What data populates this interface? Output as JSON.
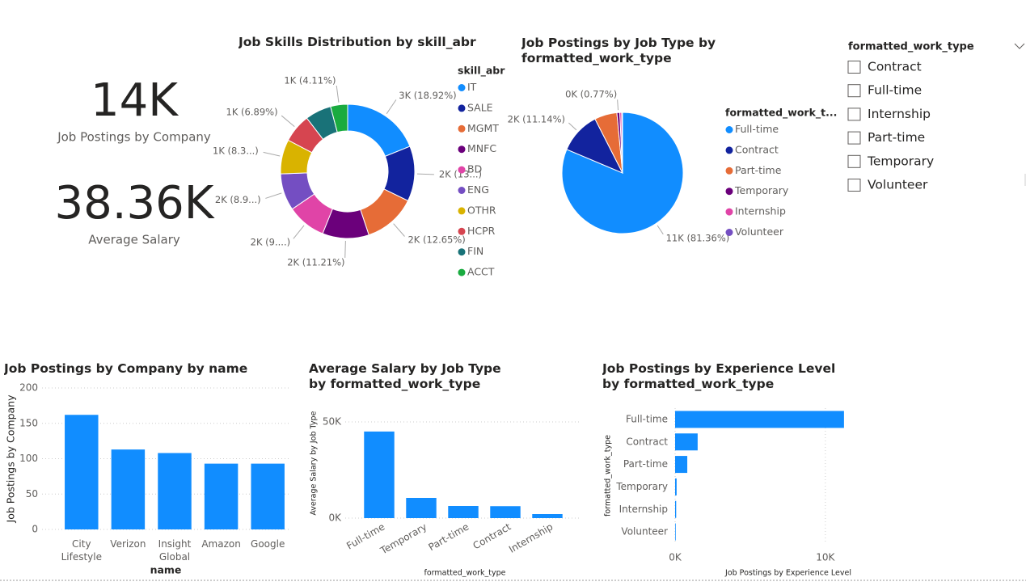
{
  "cards": [
    {
      "value": "14K",
      "label": "Job Postings by Company"
    },
    {
      "value": "38.36K",
      "label": "Average Salary"
    }
  ],
  "slicer": {
    "title": "formatted_work_type",
    "items": [
      "Contract",
      "Full-time",
      "Internship",
      "Part-time",
      "Temporary",
      "Volunteer"
    ]
  },
  "chart_data": [
    {
      "type": "donut",
      "title": "Job Skills Distribution by skill_abr",
      "legend_title": "skill_abr",
      "categories": [
        "IT",
        "SALE",
        "MGMT",
        "MNFC",
        "BD",
        "ENG",
        "OTHR",
        "HCPR",
        "FIN",
        "ACCT"
      ],
      "values": [
        18.92,
        13.3,
        12.65,
        11.21,
        9.4,
        8.9,
        8.3,
        6.89,
        6.3,
        4.11
      ],
      "value_labels": [
        "3K (18.92%)",
        "2K (13...)",
        "2K (12.65%)",
        "2K (11.21%)",
        "2K (9....)",
        "2K (8.9...)",
        "1K (8.3...)",
        "1K (6.89%)",
        null,
        "1K (4.11%)"
      ],
      "colors": [
        "#118DFF",
        "#12239E",
        "#E66C37",
        "#6B007B",
        "#E044A7",
        "#744EC2",
        "#D9B300",
        "#D64550",
        "#197278",
        "#1AAB40"
      ]
    },
    {
      "type": "pie",
      "title": "Job Postings by Job Type by formatted_work_type",
      "legend_title": "formatted_work_t...",
      "categories": [
        "Full-time",
        "Contract",
        "Part-time",
        "Temporary",
        "Internship",
        "Volunteer"
      ],
      "values": [
        81.36,
        11.14,
        6.0,
        0.77,
        0.5,
        0.23
      ],
      "value_labels": [
        "11K (81.36%)",
        "2K (11.14%)",
        null,
        "0K (0.77%)",
        null,
        null
      ],
      "colors": [
        "#118DFF",
        "#12239E",
        "#E66C37",
        "#6B007B",
        "#E044A7",
        "#744EC2"
      ]
    },
    {
      "type": "bar",
      "title": "Job Postings by Company by name",
      "x_label": "name",
      "y_label": "Job Postings by Company",
      "categories": [
        "City Lifestyle",
        "Verizon",
        "Insight Global",
        "Amazon",
        "Google"
      ],
      "values": [
        162,
        113,
        108,
        93,
        93
      ],
      "color": "#118DFF",
      "ylim": [
        0,
        200
      ],
      "yticks": [
        0,
        50,
        100,
        150,
        200
      ],
      "grid": true
    },
    {
      "type": "bar",
      "title": "Average Salary by Job Type by formatted_work_type",
      "x_label": "formatted_work_type",
      "y_label": "Average Salary by Job Type",
      "categories": [
        "Full-time",
        "Temporary",
        "Part-time",
        "Contract",
        "Internship"
      ],
      "values": [
        45000,
        10500,
        6300,
        6200,
        2100
      ],
      "color": "#118DFF",
      "ylim": [
        0,
        57000
      ],
      "yticks": [
        {
          "value": 0,
          "label": "0K"
        },
        {
          "value": 50000,
          "label": "50K"
        }
      ],
      "grid": true
    },
    {
      "type": "barh",
      "title": "Job Postings by Experience Level by formatted_work_type",
      "x_label": "Job Postings by Experience Level",
      "y_label": "formatted_work_type",
      "categories": [
        "Full-time",
        "Contract",
        "Part-time",
        "Temporary",
        "Internship",
        "Volunteer"
      ],
      "values": [
        11240,
        1500,
        810,
        100,
        70,
        40
      ],
      "color": "#118DFF",
      "xlim": [
        0,
        11300
      ],
      "xticks": [
        {
          "value": 0,
          "label": "0K"
        },
        {
          "value": 10000,
          "label": "10K"
        }
      ],
      "grid": true
    }
  ]
}
